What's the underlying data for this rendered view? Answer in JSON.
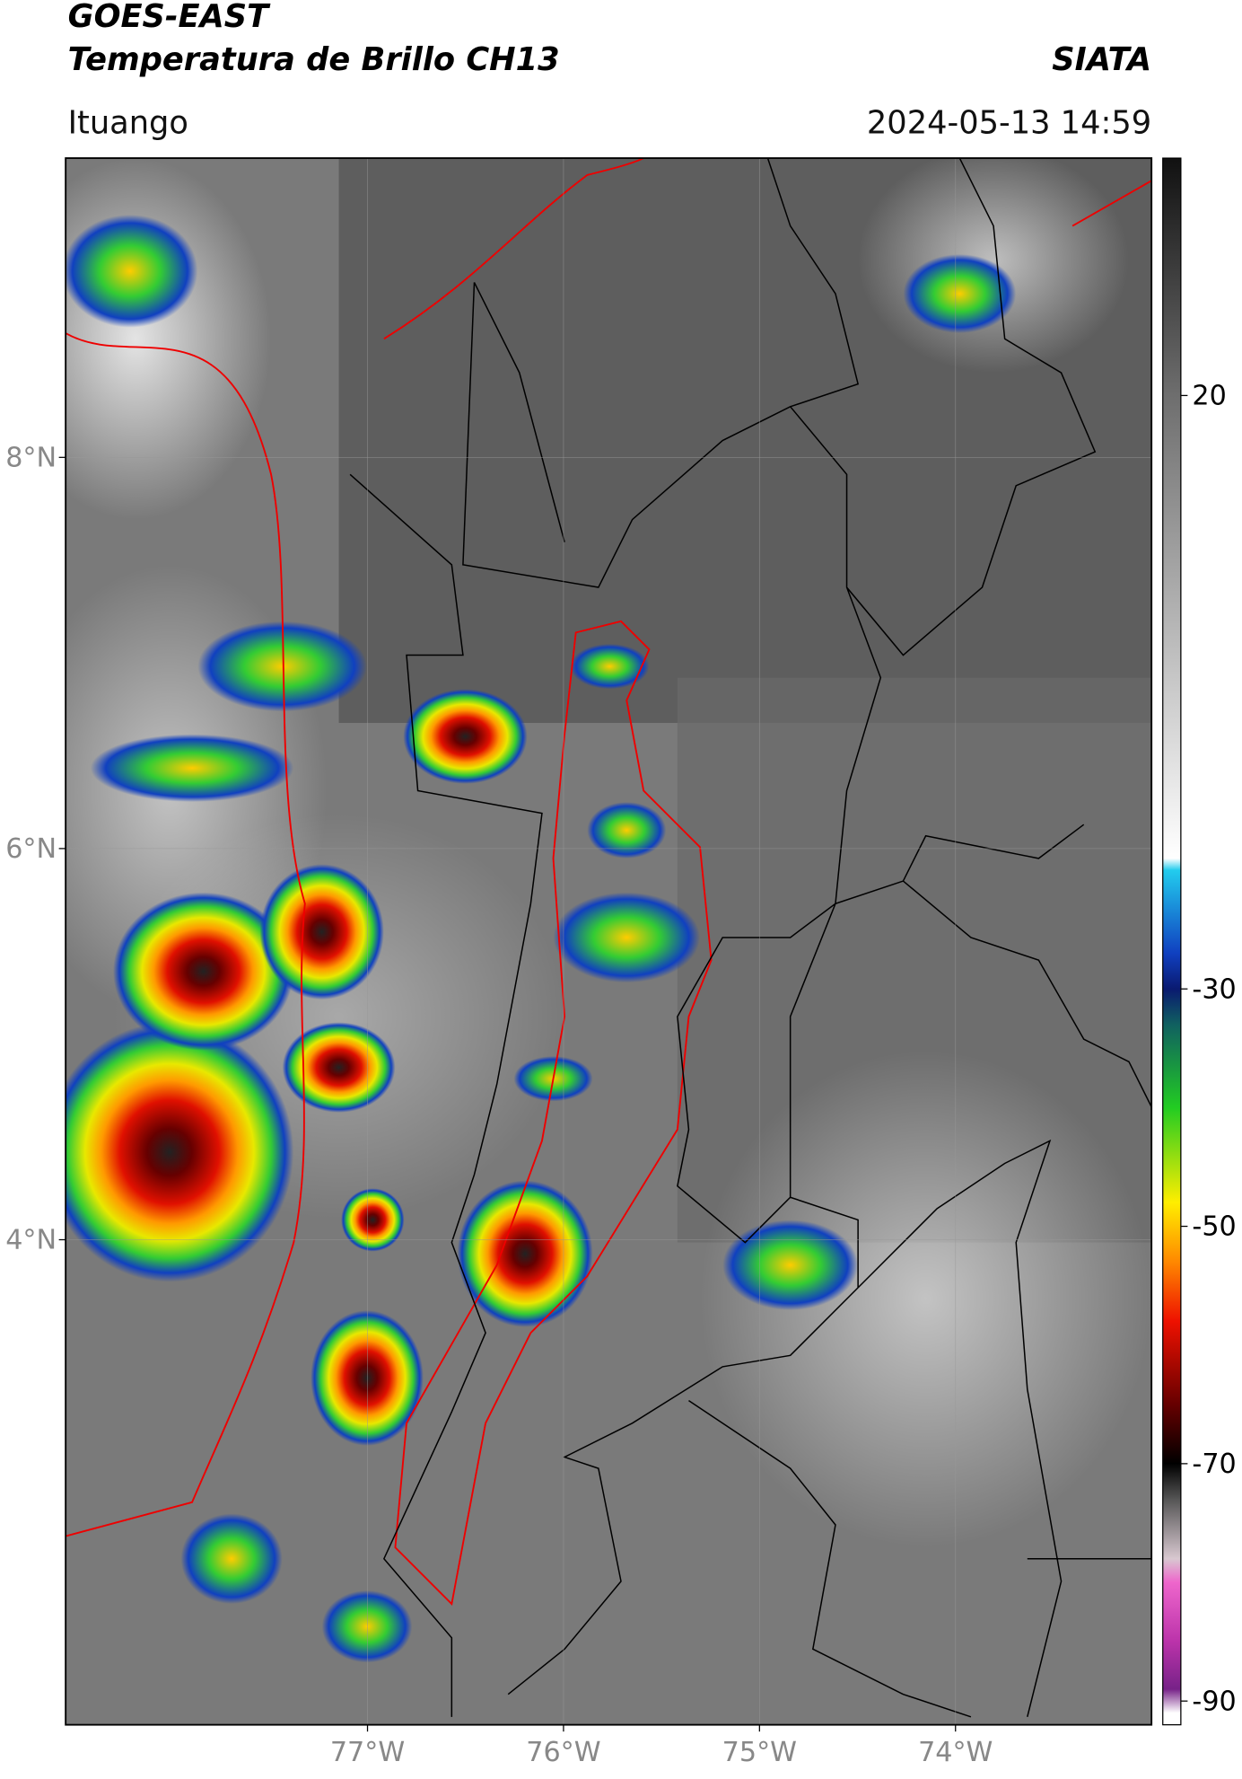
{
  "header": {
    "title_line1": "GOES-EAST",
    "title_line2": "Temperatura de Brillo CH13",
    "organization": "SIATA",
    "location": "Ituango",
    "datetime": "2024-05-13 14:59"
  },
  "map": {
    "xlim": [
      -78.54,
      -73.0
    ],
    "ylim": [
      1.52,
      9.53
    ],
    "lat_ticks": [
      {
        "value": 8,
        "label": "8°N"
      },
      {
        "value": 6,
        "label": "6°N"
      },
      {
        "value": 4,
        "label": "4°N"
      }
    ],
    "lon_ticks": [
      {
        "value": -77,
        "label": "77°W"
      },
      {
        "value": -76,
        "label": "76°W"
      },
      {
        "value": -75,
        "label": "75°W"
      },
      {
        "value": -74,
        "label": "74°W"
      }
    ],
    "grid": true
  },
  "colorbar": {
    "lim": [
      -92,
      40
    ],
    "ticks": [
      20,
      -30,
      -50,
      -70,
      -90
    ],
    "stops": [
      {
        "value": 40,
        "color": "#111111"
      },
      {
        "value": 20,
        "color": "#6e6e6e"
      },
      {
        "value": -19,
        "color": "#ffffff"
      },
      {
        "value": -20,
        "color": "#22ccee"
      },
      {
        "value": -27,
        "color": "#1040c0"
      },
      {
        "value": -30,
        "color": "#0a1a70"
      },
      {
        "value": -33,
        "color": "#106060"
      },
      {
        "value": -40,
        "color": "#22cc22"
      },
      {
        "value": -48,
        "color": "#ffee00"
      },
      {
        "value": -53,
        "color": "#ff8800"
      },
      {
        "value": -58,
        "color": "#ee1100"
      },
      {
        "value": -65,
        "color": "#660000"
      },
      {
        "value": -70,
        "color": "#000000"
      },
      {
        "value": -73,
        "color": "#555555"
      },
      {
        "value": -78,
        "color": "#d8c8d0"
      },
      {
        "value": -80,
        "color": "#ee66cc"
      },
      {
        "value": -85,
        "color": "#bb33aa"
      },
      {
        "value": -89,
        "color": "#772288"
      },
      {
        "value": -91,
        "color": "#ffffff"
      }
    ]
  }
}
